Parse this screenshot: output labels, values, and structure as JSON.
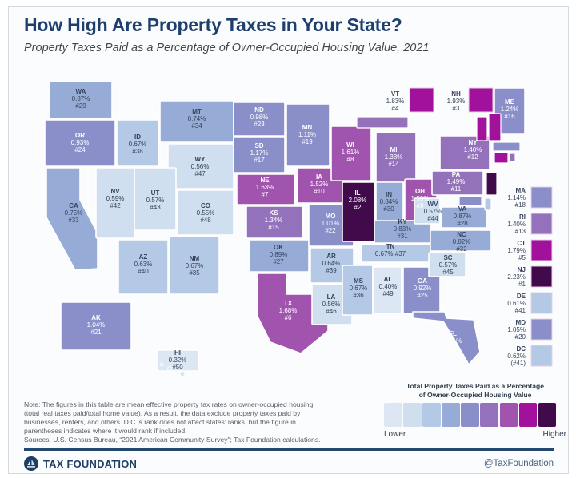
{
  "header": {
    "title": "How High Are Property Taxes in Your State?",
    "subtitle": "Property Taxes Paid as a Percentage of Owner-Occupied Housing Value, 2021"
  },
  "chart_data": {
    "type": "heatmap",
    "subtype": "us-choropleth",
    "title": "How High Are Property Taxes in Your State?",
    "subtitle": "Property Taxes Paid as a Percentage of Owner-Occupied Housing Value, 2021",
    "unit": "percent of owner-occupied housing value",
    "legend_position": "bottom-right",
    "series": [
      {
        "state": "NJ",
        "value": 2.23,
        "rank": 1
      },
      {
        "state": "IL",
        "value": 2.08,
        "rank": 2
      },
      {
        "state": "NH",
        "value": 1.93,
        "rank": 3
      },
      {
        "state": "VT",
        "value": 1.83,
        "rank": 4
      },
      {
        "state": "CT",
        "value": 1.79,
        "rank": 5
      },
      {
        "state": "TX",
        "value": 1.68,
        "rank": 6
      },
      {
        "state": "NE",
        "value": 1.63,
        "rank": 7
      },
      {
        "state": "WI",
        "value": 1.61,
        "rank": 8
      },
      {
        "state": "OH",
        "value": 1.59,
        "rank": 9
      },
      {
        "state": "IA",
        "value": 1.52,
        "rank": 10
      },
      {
        "state": "PA",
        "value": 1.49,
        "rank": 11
      },
      {
        "state": "NY",
        "value": 1.4,
        "rank": 12
      },
      {
        "state": "RI",
        "value": 1.4,
        "rank": 13
      },
      {
        "state": "MI",
        "value": 1.38,
        "rank": 14
      },
      {
        "state": "KS",
        "value": 1.34,
        "rank": 15
      },
      {
        "state": "ME",
        "value": 1.24,
        "rank": 16
      },
      {
        "state": "SD",
        "value": 1.17,
        "rank": 17
      },
      {
        "state": "MA",
        "value": 1.14,
        "rank": 18
      },
      {
        "state": "MN",
        "value": 1.11,
        "rank": 19
      },
      {
        "state": "MD",
        "value": 1.05,
        "rank": 20
      },
      {
        "state": "AK",
        "value": 1.04,
        "rank": 21
      },
      {
        "state": "MO",
        "value": 1.01,
        "rank": 22
      },
      {
        "state": "ND",
        "value": 0.98,
        "rank": 23
      },
      {
        "state": "OR",
        "value": 0.93,
        "rank": 24
      },
      {
        "state": "GA",
        "value": 0.92,
        "rank": 25
      },
      {
        "state": "FL",
        "value": 0.91,
        "rank": 26
      },
      {
        "state": "OK",
        "value": 0.89,
        "rank": 27
      },
      {
        "state": "VA",
        "value": 0.87,
        "rank": 28
      },
      {
        "state": "WA",
        "value": 0.87,
        "rank": 29
      },
      {
        "state": "IN",
        "value": 0.84,
        "rank": 30
      },
      {
        "state": "KY",
        "value": 0.83,
        "rank": 31
      },
      {
        "state": "NC",
        "value": 0.82,
        "rank": 32
      },
      {
        "state": "CA",
        "value": 0.75,
        "rank": 33
      },
      {
        "state": "MT",
        "value": 0.74,
        "rank": 34
      },
      {
        "state": "NM",
        "value": 0.67,
        "rank": 35
      },
      {
        "state": "MS",
        "value": 0.67,
        "rank": 36
      },
      {
        "state": "TN",
        "value": 0.67,
        "rank": 37
      },
      {
        "state": "ID",
        "value": 0.67,
        "rank": 38
      },
      {
        "state": "AR",
        "value": 0.64,
        "rank": 39
      },
      {
        "state": "AZ",
        "value": 0.63,
        "rank": 40
      },
      {
        "state": "DE",
        "value": 0.61,
        "rank": 41
      },
      {
        "state": "NV",
        "value": 0.59,
        "rank": 42
      },
      {
        "state": "UT",
        "value": 0.57,
        "rank": 43
      },
      {
        "state": "WV",
        "value": 0.57,
        "rank": 44
      },
      {
        "state": "SC",
        "value": 0.57,
        "rank": 45
      },
      {
        "state": "LA",
        "value": 0.56,
        "rank": 46
      },
      {
        "state": "WY",
        "value": 0.56,
        "rank": 47
      },
      {
        "state": "CO",
        "value": 0.55,
        "rank": 48
      },
      {
        "state": "AL",
        "value": 0.4,
        "rank": 49
      },
      {
        "state": "HI",
        "value": 0.32,
        "rank": 50
      },
      {
        "state": "DC",
        "value": 0.62,
        "rank": "(41)"
      }
    ]
  },
  "map": {
    "states": [
      {
        "abbr": "WA",
        "value": "0.87%",
        "rank": "#29",
        "bucket": 3
      },
      {
        "abbr": "OR",
        "value": "0.93%",
        "rank": "#24",
        "bucket": 4
      },
      {
        "abbr": "CA",
        "value": "0.75%",
        "rank": "#33",
        "bucket": 3
      },
      {
        "abbr": "NV",
        "value": "0.59%",
        "rank": "#42",
        "bucket": 1
      },
      {
        "abbr": "ID",
        "value": "0.67%",
        "rank": "#38",
        "bucket": 2
      },
      {
        "abbr": "MT",
        "value": "0.74%",
        "rank": "#34",
        "bucket": 3
      },
      {
        "abbr": "WY",
        "value": "0.56%",
        "rank": "#47",
        "bucket": 1
      },
      {
        "abbr": "UT",
        "value": "0.57%",
        "rank": "#43",
        "bucket": 1
      },
      {
        "abbr": "CO",
        "value": "0.55%",
        "rank": "#48",
        "bucket": 1
      },
      {
        "abbr": "AZ",
        "value": "0.63%",
        "rank": "#40",
        "bucket": 2
      },
      {
        "abbr": "NM",
        "value": "0.67%",
        "rank": "#35",
        "bucket": 2
      },
      {
        "abbr": "AK",
        "value": "1.04%",
        "rank": "#21",
        "bucket": 4
      },
      {
        "abbr": "HI",
        "value": "0.32%",
        "rank": "#50",
        "bucket": 0
      },
      {
        "abbr": "ND",
        "value": "0.98%",
        "rank": "#23",
        "bucket": 4
      },
      {
        "abbr": "SD",
        "value": "1.17%",
        "rank": "#17",
        "bucket": 4
      },
      {
        "abbr": "NE",
        "value": "1.63%",
        "rank": "#7",
        "bucket": 6
      },
      {
        "abbr": "KS",
        "value": "1.34%",
        "rank": "#15",
        "bucket": 5
      },
      {
        "abbr": "OK",
        "value": "0.89%",
        "rank": "#27",
        "bucket": 3
      },
      {
        "abbr": "TX",
        "value": "1.68%",
        "rank": "#6",
        "bucket": 6
      },
      {
        "abbr": "MN",
        "value": "1.11%",
        "rank": "#19",
        "bucket": 4
      },
      {
        "abbr": "IA",
        "value": "1.52%",
        "rank": "#10",
        "bucket": 6
      },
      {
        "abbr": "MO",
        "value": "1.01%",
        "rank": "#22",
        "bucket": 4
      },
      {
        "abbr": "AR",
        "value": "0.64%",
        "rank": "#39",
        "bucket": 2
      },
      {
        "abbr": "LA",
        "value": "0.56%",
        "rank": "#46",
        "bucket": 1
      },
      {
        "abbr": "WI",
        "value": "1.61%",
        "rank": "#8",
        "bucket": 6
      },
      {
        "abbr": "IL",
        "value": "2.08%",
        "rank": "#2",
        "bucket": 8
      },
      {
        "abbr": "MS",
        "value": "0.67%",
        "rank": "#36",
        "bucket": 2
      },
      {
        "abbr": "MI",
        "value": "1.38%",
        "rank": "#14",
        "bucket": 5
      },
      {
        "abbr": "IN",
        "value": "0.84%",
        "rank": "#30",
        "bucket": 3
      },
      {
        "abbr": "OH",
        "value": "1.59%",
        "rank": "#9",
        "bucket": 6
      },
      {
        "abbr": "KY",
        "value": "0.83%",
        "rank": "#31",
        "bucket": 3
      },
      {
        "abbr": "TN",
        "value": "0.67%",
        "rank": "#37",
        "bucket": 2
      },
      {
        "abbr": "AL",
        "value": "0.40%",
        "rank": "#49",
        "bucket": 0
      },
      {
        "abbr": "GA",
        "value": "0.92%",
        "rank": "#25",
        "bucket": 4
      },
      {
        "abbr": "WV",
        "value": "0.57%",
        "rank": "#44",
        "bucket": 1
      },
      {
        "abbr": "VA",
        "value": "0.87%",
        "rank": "#28",
        "bucket": 3
      },
      {
        "abbr": "NC",
        "value": "0.82%",
        "rank": "#32",
        "bucket": 3
      },
      {
        "abbr": "SC",
        "value": "0.57%",
        "rank": "#45",
        "bucket": 1
      },
      {
        "abbr": "FL",
        "value": "0.91%",
        "rank": "#26",
        "bucket": 4
      },
      {
        "abbr": "PA",
        "value": "1.49%",
        "rank": "#11",
        "bucket": 5
      },
      {
        "abbr": "NY",
        "value": "1.40%",
        "rank": "#12",
        "bucket": 5
      },
      {
        "abbr": "ME",
        "value": "1.24%",
        "rank": "#16",
        "bucket": 4
      },
      {
        "abbr": "VT",
        "value": "1.83%",
        "rank": "#4",
        "bucket": 7
      },
      {
        "abbr": "NH",
        "value": "1.93%",
        "rank": "#3",
        "bucket": 7
      },
      {
        "abbr": "MA",
        "value": "1.14%",
        "rank": "#18",
        "bucket": 4
      },
      {
        "abbr": "RI",
        "value": "1.40%",
        "rank": "#13",
        "bucket": 5
      },
      {
        "abbr": "CT",
        "value": "1.79%",
        "rank": "#5",
        "bucket": 7
      },
      {
        "abbr": "NJ",
        "value": "2.23%",
        "rank": "#1",
        "bucket": 8
      },
      {
        "abbr": "DE",
        "value": "0.61%",
        "rank": "#41",
        "bucket": 2
      },
      {
        "abbr": "MD",
        "value": "1.05%",
        "rank": "#20",
        "bucket": 4
      },
      {
        "abbr": "DC",
        "value": "0.62%",
        "rank": "(#41)",
        "bucket": 2
      }
    ]
  },
  "legend": {
    "title1": "Total Property Taxes Paid as a Percentage",
    "title2": "of Owner-Occupied Housing Value",
    "lower": "Lower",
    "higher": "Higher",
    "colors": [
      "#dde7f3",
      "#cfdfef",
      "#b4c9e5",
      "#96acd6",
      "#8b8fc9",
      "#9472bb",
      "#a054ad",
      "#a2119c",
      "#410a4a"
    ]
  },
  "note": {
    "lines": [
      "Note: The figures in this table are mean effective property tax rates on owner-occupied housing",
      "(total real taxes paid/total home value). As a result, the data exclude property taxes paid by",
      "businesses, renters, and others. D.C.'s rank does not affect states' ranks, but the figure in",
      "parentheses indicates where it would rank if included.",
      "Sources: U.S. Census Bureau, “2021 American Community Survey”; Tax Foundation calculations."
    ]
  },
  "footer": {
    "brand": "TAX FOUNDATION",
    "handle": "@TaxFoundation"
  },
  "theme": {
    "title_color": "#1e3f6e",
    "dark_label": "#36425a",
    "light_label": "#ffffff",
    "divider_color": "#24486e"
  }
}
